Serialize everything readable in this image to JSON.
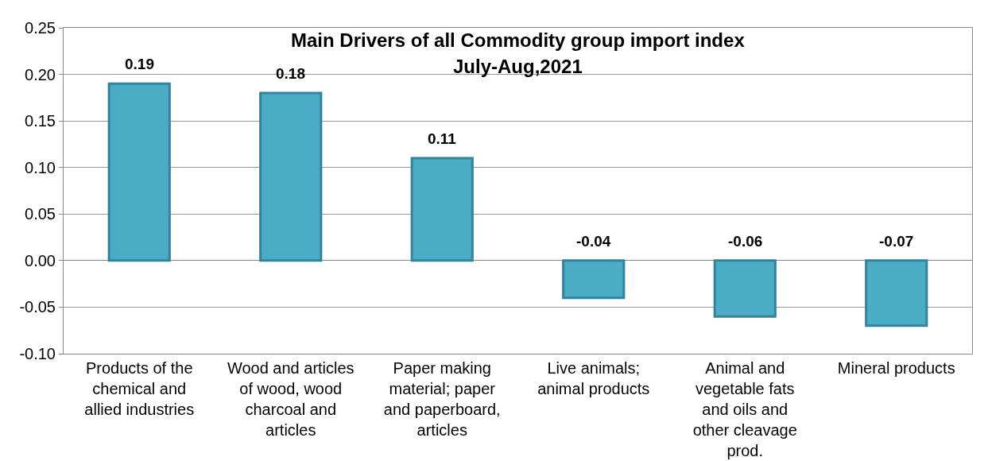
{
  "chart_data": {
    "type": "bar",
    "title": "Main Drivers of all Commodity group import index",
    "subtitle": "July-Aug,2021",
    "categories": [
      "Products of the chemical and allied industries",
      "Wood and articles of wood, wood charcoal and articles",
      "Paper making material; paper and paperboard, articles",
      "Live animals; animal products",
      "Animal and vegetable fats and oils and other cleavage prod.",
      "Mineral products"
    ],
    "values": [
      0.19,
      0.18,
      0.11,
      -0.04,
      -0.06,
      -0.07
    ],
    "color": "#4bacc6",
    "ylim": [
      -0.1,
      0.25
    ],
    "yticks": [
      {
        "value": -0.1,
        "label": "-0.10"
      },
      {
        "value": -0.05,
        "label": "-0.05"
      },
      {
        "value": 0,
        "label": "0.00"
      },
      {
        "value": 0.05,
        "label": "0.05"
      },
      {
        "value": 0.1,
        "label": "0.10"
      },
      {
        "value": 0.15,
        "label": "0.15"
      },
      {
        "value": 0.2,
        "label": "0.20"
      },
      {
        "value": 0.25,
        "label": "0.25"
      }
    ],
    "grid": "y",
    "data_labels": true,
    "legend": false
  }
}
